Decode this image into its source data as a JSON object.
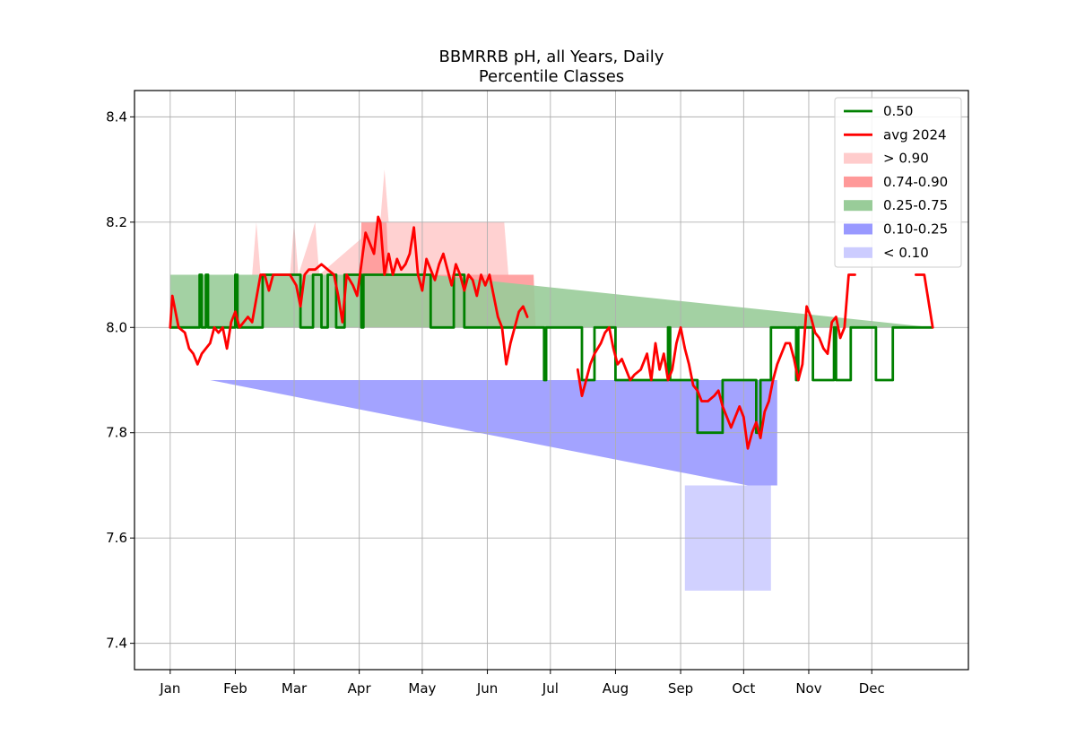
{
  "chart_data": {
    "type": "area",
    "title": "BBMRRB pH, all Years, Daily",
    "subtitle": "Percentile Classes",
    "xlabel": "",
    "ylabel": "",
    "x_tick_labels": [
      "Jan",
      "Feb",
      "Mar",
      "Apr",
      "May",
      "Jun",
      "Jul",
      "Aug",
      "Sep",
      "Oct",
      "Nov",
      "Dec"
    ],
    "x_tick_days": [
      1,
      32,
      60,
      91,
      121,
      152,
      182,
      213,
      244,
      274,
      305,
      335
    ],
    "xlim": [
      -16,
      381
    ],
    "y_ticks": [
      7.4,
      7.6,
      7.8,
      8.0,
      8.2,
      8.4
    ],
    "y_tick_labels": [
      "7.4",
      "7.6",
      "7.8",
      "8.0",
      "8.2",
      "8.4"
    ],
    "ylim": [
      7.35,
      8.45
    ],
    "grid": true,
    "legend_placement": "upper-right",
    "legend": [
      {
        "label": "0.50",
        "kind": "line",
        "color": "#008000"
      },
      {
        "label": "avg 2024",
        "kind": "line",
        "color": "#ff0000"
      },
      {
        "label": "> 0.90",
        "kind": "patch",
        "color": "#ffcccc"
      },
      {
        "label": "0.74-0.90",
        "kind": "patch",
        "color": "#ff9999"
      },
      {
        "label": "0.25-0.75",
        "kind": "patch",
        "color": "#99cc99"
      },
      {
        "label": "0.10-0.25",
        "kind": "patch",
        "color": "#9999ff"
      },
      {
        "label": "< 0.10",
        "kind": "patch",
        "color": "#ccccff"
      }
    ],
    "series": [
      {
        "name": "0.50",
        "color": "#008000",
        "points": [
          [
            1,
            8.0
          ],
          [
            14,
            8.0
          ],
          [
            15,
            8.1
          ],
          [
            16,
            8.0
          ],
          [
            18,
            8.1
          ],
          [
            19,
            8.0
          ],
          [
            31,
            8.0
          ],
          [
            32,
            8.1
          ],
          [
            33,
            8.0
          ],
          [
            44,
            8.0
          ],
          [
            45,
            8.1
          ],
          [
            62,
            8.1
          ],
          [
            63,
            8.0
          ],
          [
            68,
            8.0
          ],
          [
            69,
            8.1
          ],
          [
            72,
            8.1
          ],
          [
            73,
            8.0
          ],
          [
            75,
            8.0
          ],
          [
            76,
            8.1
          ],
          [
            79,
            8.1
          ],
          [
            80,
            8.0
          ],
          [
            83,
            8.0
          ],
          [
            84,
            8.1
          ],
          [
            91,
            8.1
          ],
          [
            92,
            8.0
          ],
          [
            93,
            8.1
          ],
          [
            124,
            8.1
          ],
          [
            125,
            8.0
          ],
          [
            135,
            8.0
          ],
          [
            136,
            8.1
          ],
          [
            140,
            8.1
          ],
          [
            141,
            8.0
          ],
          [
            178,
            8.0
          ],
          [
            179,
            7.9
          ],
          [
            180,
            8.0
          ],
          [
            196,
            8.0
          ],
          [
            197,
            7.9
          ],
          [
            202,
            7.9
          ],
          [
            203,
            8.0
          ],
          [
            212,
            8.0
          ],
          [
            213,
            7.9
          ],
          [
            237,
            7.9
          ],
          [
            238,
            8.0
          ],
          [
            239,
            7.9
          ],
          [
            251,
            7.9
          ],
          [
            252,
            7.8
          ],
          [
            263,
            7.8
          ],
          [
            264,
            7.9
          ],
          [
            279,
            7.9
          ],
          [
            280,
            7.8
          ],
          [
            282,
            7.9
          ],
          [
            286,
            7.9
          ],
          [
            287,
            8.0
          ],
          [
            298,
            8.0
          ],
          [
            299,
            7.9
          ],
          [
            300,
            8.0
          ],
          [
            306,
            8.0
          ],
          [
            307,
            7.9
          ],
          [
            316,
            7.9
          ],
          [
            317,
            8.0
          ],
          [
            318,
            7.9
          ],
          [
            324,
            7.9
          ],
          [
            325,
            8.0
          ],
          [
            336,
            8.0
          ],
          [
            337,
            7.9
          ],
          [
            344,
            7.9
          ],
          [
            345,
            8.0
          ],
          [
            364,
            8.0
          ]
        ]
      },
      {
        "name": "avg 2024",
        "color": "#ff0000",
        "segments": [
          [
            [
              1,
              8.0
            ],
            [
              2,
              8.06
            ],
            [
              5,
              8.0
            ],
            [
              8,
              7.99
            ],
            [
              10,
              7.96
            ],
            [
              12,
              7.95
            ],
            [
              14,
              7.93
            ],
            [
              16,
              7.95
            ],
            [
              18,
              7.96
            ],
            [
              20,
              7.97
            ],
            [
              22,
              8.0
            ],
            [
              24,
              7.99
            ],
            [
              26,
              8.0
            ],
            [
              28,
              7.96
            ],
            [
              30,
              8.01
            ],
            [
              32,
              8.03
            ],
            [
              34,
              8.0
            ],
            [
              36,
              8.01
            ],
            [
              38,
              8.02
            ],
            [
              40,
              8.01
            ],
            [
              44,
              8.1
            ],
            [
              46,
              8.1
            ],
            [
              48,
              8.07
            ],
            [
              50,
              8.1
            ],
            [
              54,
              8.1
            ],
            [
              58,
              8.1
            ],
            [
              61,
              8.08
            ],
            [
              63,
              8.04
            ],
            [
              65,
              8.1
            ],
            [
              67,
              8.11
            ],
            [
              70,
              8.11
            ],
            [
              73,
              8.12
            ],
            [
              76,
              8.11
            ],
            [
              79,
              8.1
            ],
            [
              81,
              8.06
            ],
            [
              83,
              8.01
            ],
            [
              85,
              8.1
            ],
            [
              88,
              8.08
            ],
            [
              90,
              8.06
            ],
            [
              92,
              8.12
            ],
            [
              94,
              8.18
            ],
            [
              96,
              8.16
            ],
            [
              98,
              8.14
            ],
            [
              100,
              8.21
            ],
            [
              101,
              8.2
            ],
            [
              103,
              8.1
            ],
            [
              105,
              8.14
            ],
            [
              107,
              8.1
            ],
            [
              109,
              8.13
            ],
            [
              111,
              8.11
            ],
            [
              113,
              8.12
            ],
            [
              115,
              8.14
            ],
            [
              117,
              8.19
            ],
            [
              119,
              8.1
            ],
            [
              121,
              8.07
            ],
            [
              123,
              8.13
            ],
            [
              125,
              8.11
            ],
            [
              127,
              8.09
            ],
            [
              129,
              8.12
            ],
            [
              131,
              8.14
            ],
            [
              133,
              8.11
            ],
            [
              135,
              8.08
            ],
            [
              137,
              8.12
            ],
            [
              139,
              8.1
            ],
            [
              141,
              8.07
            ],
            [
              143,
              8.1
            ],
            [
              145,
              8.09
            ],
            [
              147,
              8.06
            ],
            [
              149,
              8.1
            ],
            [
              151,
              8.08
            ],
            [
              153,
              8.1
            ],
            [
              155,
              8.06
            ],
            [
              157,
              8.02
            ],
            [
              159,
              8.0
            ],
            [
              161,
              7.93
            ],
            [
              163,
              7.97
            ],
            [
              165,
              8.0
            ],
            [
              167,
              8.03
            ],
            [
              169,
              8.04
            ],
            [
              171,
              8.02
            ]
          ],
          [
            [
              195,
              7.92
            ],
            [
              197,
              7.87
            ],
            [
              199,
              7.9
            ],
            [
              201,
              7.93
            ],
            [
              203,
              7.95
            ],
            [
              206,
              7.97
            ],
            [
              208,
              7.99
            ],
            [
              210,
              8.0
            ],
            [
              212,
              7.96
            ],
            [
              214,
              7.93
            ],
            [
              216,
              7.94
            ],
            [
              218,
              7.92
            ],
            [
              220,
              7.9
            ],
            [
              222,
              7.91
            ],
            [
              225,
              7.92
            ],
            [
              228,
              7.95
            ],
            [
              230,
              7.9
            ],
            [
              232,
              7.97
            ],
            [
              234,
              7.92
            ],
            [
              236,
              7.95
            ],
            [
              238,
              7.9
            ],
            [
              240,
              7.92
            ],
            [
              242,
              7.97
            ],
            [
              244,
              8.0
            ],
            [
              246,
              7.96
            ],
            [
              248,
              7.93
            ],
            [
              250,
              7.89
            ],
            [
              252,
              7.88
            ],
            [
              254,
              7.86
            ],
            [
              257,
              7.86
            ],
            [
              260,
              7.87
            ],
            [
              262,
              7.88
            ],
            [
              264,
              7.85
            ],
            [
              266,
              7.83
            ],
            [
              268,
              7.81
            ],
            [
              270,
              7.83
            ],
            [
              272,
              7.85
            ],
            [
              274,
              7.83
            ],
            [
              276,
              7.77
            ],
            [
              278,
              7.8
            ],
            [
              280,
              7.82
            ],
            [
              282,
              7.79
            ],
            [
              284,
              7.84
            ],
            [
              286,
              7.86
            ],
            [
              288,
              7.9
            ],
            [
              290,
              7.93
            ],
            [
              292,
              7.95
            ],
            [
              294,
              7.97
            ],
            [
              296,
              7.97
            ],
            [
              298,
              7.94
            ],
            [
              300,
              7.9
            ],
            [
              302,
              7.93
            ],
            [
              304,
              8.04
            ],
            [
              306,
              8.02
            ],
            [
              308,
              7.99
            ],
            [
              310,
              7.98
            ],
            [
              312,
              7.96
            ],
            [
              314,
              7.95
            ],
            [
              316,
              8.01
            ],
            [
              318,
              8.02
            ],
            [
              320,
              7.98
            ],
            [
              322,
              8.0
            ],
            [
              324,
              8.1
            ],
            [
              327,
              8.1
            ]
          ],
          [
            [
              356,
              8.1
            ],
            [
              358,
              8.1
            ],
            [
              360,
              8.1
            ],
            [
              362,
              8.05
            ],
            [
              364,
              8.0
            ]
          ]
        ]
      }
    ],
    "percentile_bands": [
      {
        "name": "> 0.90",
        "color": "#ffcccc",
        "lower": 8.1,
        "upper_points": [
          [
            1,
            8.1
          ],
          [
            40,
            8.1
          ],
          [
            42,
            8.2
          ],
          [
            44,
            8.1
          ],
          [
            58,
            8.1
          ],
          [
            60,
            8.2
          ],
          [
            62,
            8.1
          ],
          [
            70,
            8.2
          ],
          [
            72,
            8.1
          ],
          [
            101,
            8.2
          ],
          [
            103,
            8.3
          ],
          [
            105,
            8.2
          ],
          [
            160,
            8.2
          ],
          [
            162,
            8.1
          ],
          [
            364,
            8.1
          ]
        ]
      },
      {
        "name": "0.74-0.90",
        "color": "#ff9999",
        "lower": 8.0,
        "upper_points": [
          [
            1,
            8.0
          ],
          [
            91,
            8.0
          ],
          [
            92,
            8.2
          ],
          [
            104,
            8.2
          ],
          [
            105,
            8.1
          ],
          [
            174,
            8.1
          ],
          [
            175,
            8.0
          ],
          [
            364,
            8.0
          ]
        ]
      },
      {
        "name": "0.25-0.75",
        "color": "#99cc99",
        "lower": 8.0,
        "upper_points": [
          [
            1,
            8.1
          ],
          [
            45,
            8.1
          ],
          [
            92,
            8.1
          ],
          [
            125,
            8.1
          ],
          [
            364,
            8.0
          ]
        ]
      },
      {
        "name": "0.10-0.25",
        "color": "#9999ff",
        "lower": 7.9,
        "upper_points": [
          [
            8,
            7.9
          ],
          [
            20,
            7.9
          ],
          [
            276,
            7.7
          ],
          [
            290,
            7.7
          ]
        ]
      },
      {
        "name": "< 0.10",
        "color": "#ccccff",
        "lower": 7.5,
        "upper_points": [
          [
            246,
            7.7
          ],
          [
            260,
            7.7
          ],
          [
            287,
            7.7
          ]
        ]
      }
    ]
  }
}
